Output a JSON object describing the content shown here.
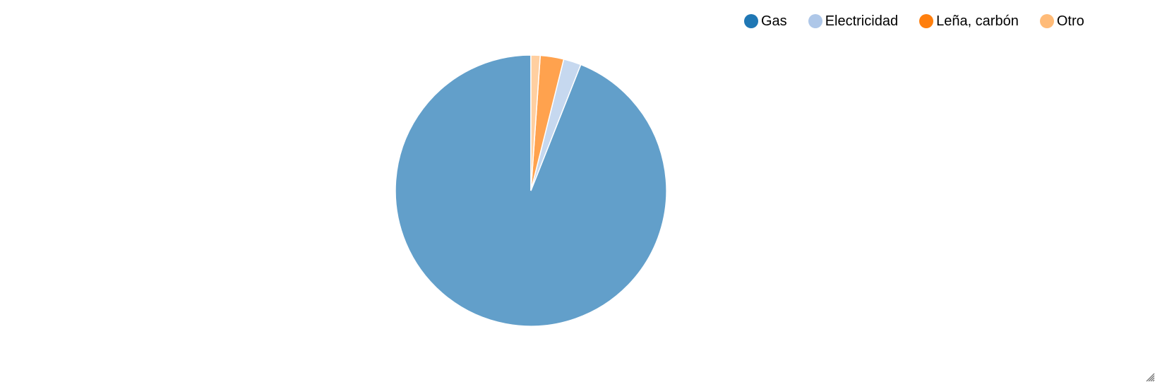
{
  "chart_data": {
    "type": "pie",
    "title": "",
    "start_angle": "12 o'clock",
    "direction": "counterclockwise",
    "slices": [
      {
        "label": "Gas",
        "value": 94.0,
        "legend_color": "#1f77b4",
        "fill_color": "#629fca"
      },
      {
        "label": "Electricidad",
        "value": 2.1,
        "legend_color": "#aec7e8",
        "fill_color": "#c6d8ef"
      },
      {
        "label": "Leña, carbón",
        "value": 2.8,
        "legend_color": "#ff7f0e",
        "fill_color": "#ffa24e"
      },
      {
        "label": "Otro",
        "value": 1.1,
        "legend_color": "#ffbb78",
        "fill_color": "#ffcfa0"
      }
    ],
    "legend_placement": "top-right",
    "slice_stroke_color": "#ffffff"
  },
  "ui": {
    "resize_handle_icon": "resize-grip-icon"
  }
}
